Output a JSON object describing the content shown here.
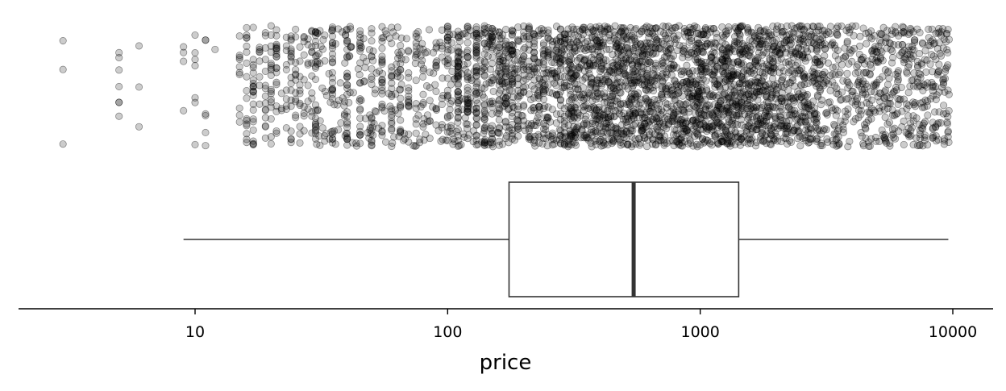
{
  "chart_data": {
    "type": "scatter",
    "title": "",
    "xlabel": "price",
    "ylabel": "",
    "x_scale": "log10",
    "xlim": [
      2,
      14000
    ],
    "grid": false,
    "legend": "none",
    "x_ticks": [
      {
        "value": 10,
        "label": "10"
      },
      {
        "value": 100,
        "label": "100"
      },
      {
        "value": 1000,
        "label": "1000"
      },
      {
        "value": 10000,
        "label": "10000"
      }
    ],
    "point_color": "#000000",
    "point_alpha": 0.2,
    "point_price_bands": [
      {
        "low": 3,
        "high": 3,
        "count": 3
      },
      {
        "low": 5,
        "high": 6,
        "count": 10
      },
      {
        "low": 9,
        "high": 12,
        "count": 18
      },
      {
        "low": 15,
        "high": 30,
        "count": 200
      },
      {
        "low": 30,
        "high": 100,
        "count": 400
      },
      {
        "low": 100,
        "high": 300,
        "count": 750
      },
      {
        "low": 300,
        "high": 1000,
        "count": 1100
      },
      {
        "low": 1000,
        "high": 3000,
        "count": 1000
      },
      {
        "low": 3000,
        "high": 9700,
        "count": 550
      }
    ],
    "boxplot": {
      "whisker_low": 9,
      "q1": 175,
      "median": 545,
      "q3": 1420,
      "whisker_high": 9600
    }
  }
}
